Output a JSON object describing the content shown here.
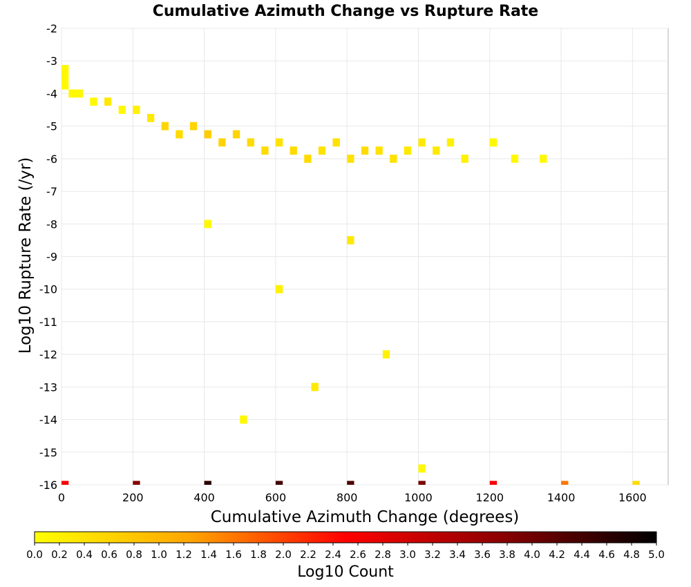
{
  "chart_data": {
    "type": "heatmap",
    "title": "Cumulative Azimuth Change vs Rupture Rate",
    "xlabel": "Cumulative Azimuth Change (degrees)",
    "ylabel": "Log10 Rupture Rate (/yr)",
    "xlim": [
      0,
      1700
    ],
    "ylim": [
      -16,
      -2
    ],
    "x_ticks": [
      "0",
      "200",
      "400",
      "600",
      "800",
      "1000",
      "1200",
      "1400",
      "1600"
    ],
    "y_ticks": [
      "-2",
      "-3",
      "-4",
      "-5",
      "-6",
      "-7",
      "-8",
      "-9",
      "-10",
      "-11",
      "-12",
      "-13",
      "-14",
      "-15",
      "-16"
    ],
    "grid": true,
    "colorbar": {
      "label": "Log10 Count",
      "range": [
        0,
        5
      ],
      "ticks": [
        "0.0",
        "0.2",
        "0.4",
        "0.6",
        "0.8",
        "1.0",
        "1.2",
        "1.4",
        "1.6",
        "1.8",
        "2.0",
        "2.2",
        "2.4",
        "2.6",
        "2.8",
        "3.0",
        "3.2",
        "3.4",
        "3.6",
        "3.8",
        "4.0",
        "4.2",
        "4.4",
        "4.6",
        "4.8",
        "5.0"
      ],
      "colors": [
        "#ffff00",
        "#ffa500",
        "#ff0000",
        "#8b0000",
        "#000000"
      ]
    },
    "bin_size": {
      "x": 20,
      "y": 0.25
    },
    "description_of_density": "Dense band of counts (log10 ~0.2–0.9) between log10 rate -3.25 and -6.25 for azimuth 0–1350 degrees; sparse low counts (~0.0–0.6) scattered from -6.25 to -15.75 for azimuth 100–1200; a bottom row at -16 spanning 0–1620 degrees with high counts (log10 ~4.5 near 400–900, decreasing to ~0.5 near 1600).",
    "cells": [
      [
        0,
        -3.25,
        0.1
      ],
      [
        0,
        -3.5,
        0.1
      ],
      [
        0,
        -3.75,
        0.1
      ],
      [
        20,
        -4.0,
        0.1
      ],
      [
        40,
        -4.0,
        0.1
      ],
      [
        80,
        -4.25,
        0.1
      ],
      [
        120,
        -4.25,
        0.3
      ],
      [
        160,
        -4.5,
        0.1
      ],
      [
        200,
        -4.5,
        0.2
      ],
      [
        240,
        -4.75,
        0.3
      ],
      [
        280,
        -5.0,
        0.6
      ],
      [
        320,
        -5.25,
        0.5
      ],
      [
        360,
        -5.0,
        0.6
      ],
      [
        400,
        -5.25,
        0.7
      ],
      [
        440,
        -5.5,
        0.6
      ],
      [
        480,
        -5.25,
        0.6
      ],
      [
        520,
        -5.5,
        0.5
      ],
      [
        560,
        -5.75,
        0.5
      ],
      [
        600,
        -5.5,
        0.4
      ],
      [
        640,
        -5.75,
        0.5
      ],
      [
        680,
        -6.0,
        0.5
      ],
      [
        720,
        -5.75,
        0.4
      ],
      [
        760,
        -5.5,
        0.4
      ],
      [
        800,
        -6.0,
        0.4
      ],
      [
        840,
        -5.75,
        0.5
      ],
      [
        880,
        -5.75,
        0.4
      ],
      [
        920,
        -6.0,
        0.4
      ],
      [
        960,
        -5.75,
        0.3
      ],
      [
        1000,
        -5.5,
        0.3
      ],
      [
        1040,
        -5.75,
        0.3
      ],
      [
        1080,
        -5.5,
        0.2
      ],
      [
        1120,
        -6.0,
        0.2
      ],
      [
        1200,
        -5.5,
        0.1
      ],
      [
        1260,
        -6.0,
        0.1
      ],
      [
        1340,
        -6.0,
        0.1
      ],
      [
        400,
        -8.0,
        0.1
      ],
      [
        600,
        -10.0,
        0.2
      ],
      [
        800,
        -8.5,
        0.3
      ],
      [
        900,
        -12.0,
        0.2
      ],
      [
        700,
        -13.0,
        0.3
      ],
      [
        500,
        -14.0,
        0.1
      ],
      [
        1000,
        -15.5,
        0.1
      ],
      [
        0,
        -16,
        2.6
      ],
      [
        200,
        -16,
        3.8
      ],
      [
        400,
        -16,
        4.6
      ],
      [
        600,
        -16,
        4.4
      ],
      [
        800,
        -16,
        4.3
      ],
      [
        1000,
        -16,
        3.9
      ],
      [
        1200,
        -16,
        2.6
      ],
      [
        1400,
        -16,
        1.6
      ],
      [
        1600,
        -16,
        0.5
      ]
    ]
  }
}
